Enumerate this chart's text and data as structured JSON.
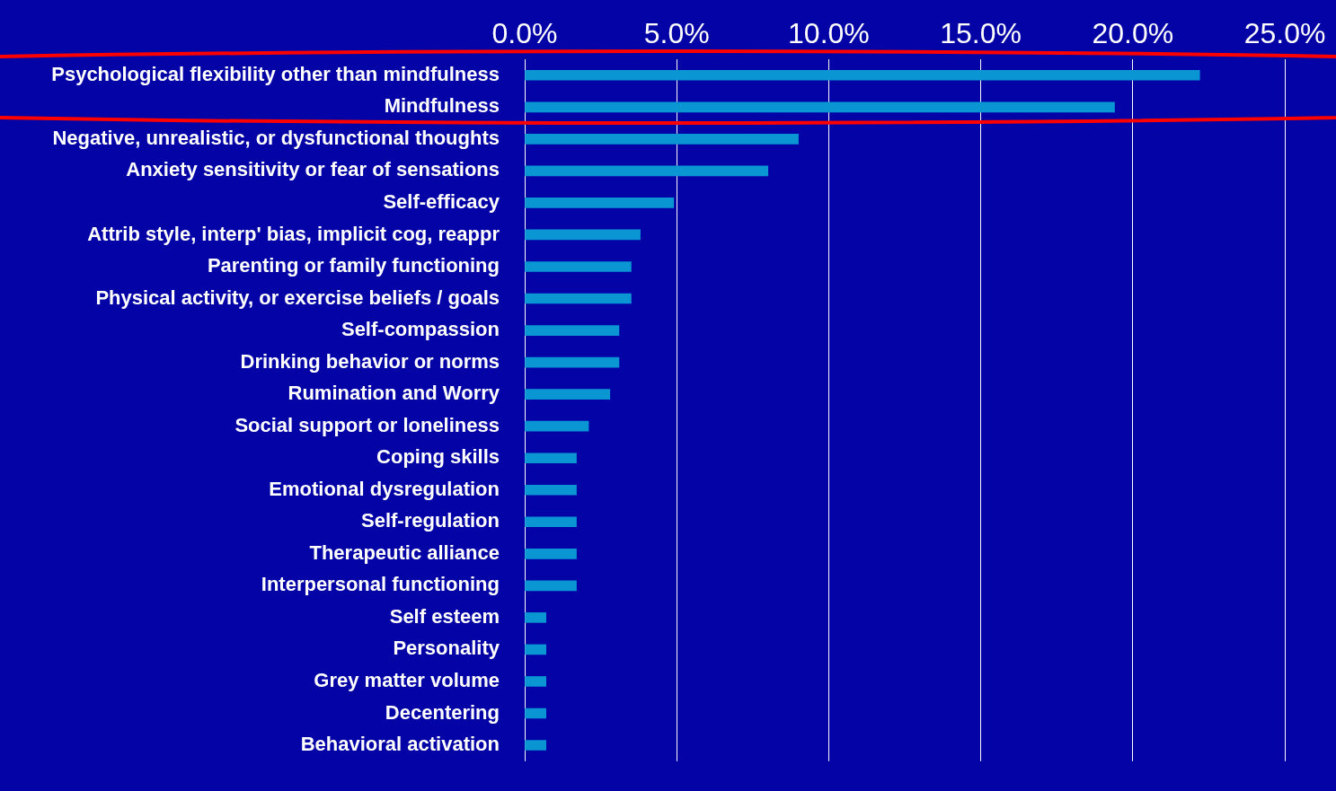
{
  "chart_data": {
    "type": "bar",
    "orientation": "horizontal",
    "categories": [
      "Psychological flexibility other than mindfulness",
      "Mindfulness",
      "Negative, unrealistic, or dysfunctional thoughts",
      "Anxiety sensitivity or fear of sensations",
      "Self-efficacy",
      "Attrib style, interp' bias, implicit cog, reappr",
      "Parenting or family functioning",
      "Physical activity, or exercise beliefs / goals",
      "Self-compassion",
      "Drinking behavior or norms",
      "Rumination and Worry",
      "Social support or loneliness",
      "Coping skills",
      "Emotional dysregulation",
      "Self-regulation",
      "Therapeutic alliance",
      "Interpersonal functioning",
      "Self esteem",
      "Personality",
      "Grey matter volume",
      "Decentering",
      "Behavioral activation"
    ],
    "values": [
      22.2,
      19.4,
      9.0,
      8.0,
      4.9,
      3.8,
      3.5,
      3.5,
      3.1,
      3.1,
      2.8,
      2.1,
      1.7,
      1.7,
      1.7,
      1.7,
      1.7,
      0.7,
      0.7,
      0.7,
      0.7,
      0.7
    ],
    "color": "#0a96d2",
    "xlim": [
      0,
      25
    ],
    "xticks": [
      {
        "value": 0,
        "label": "0.0%"
      },
      {
        "value": 5,
        "label": "5.0%"
      },
      {
        "value": 10,
        "label": "10.0%"
      },
      {
        "value": 15,
        "label": "15.0%"
      },
      {
        "value": 20,
        "label": "20.0%"
      },
      {
        "value": 25,
        "label": "25.0%"
      }
    ],
    "grid": "x",
    "legend": false
  }
}
